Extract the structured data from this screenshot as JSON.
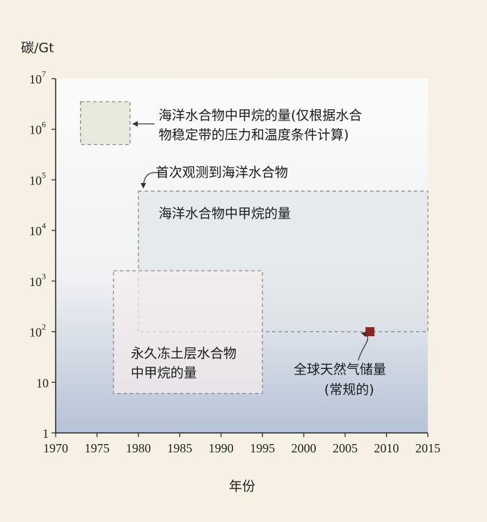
{
  "chart_data": {
    "type": "area",
    "ylabel": "碳/Gt",
    "xlabel": "年份",
    "xlim": [
      1970,
      2015
    ],
    "ylim": [
      1,
      10000000
    ],
    "y_scale": "log",
    "x_ticks": [
      1970,
      1975,
      1980,
      1985,
      1990,
      1995,
      2000,
      2005,
      2010,
      2015
    ],
    "y_ticks": [
      {
        "value": 1,
        "base": "1",
        "exp": ""
      },
      {
        "value": 10,
        "base": "10",
        "exp": ""
      },
      {
        "value": 100,
        "base": "10",
        "exp": "2"
      },
      {
        "value": 1000,
        "base": "10",
        "exp": "3"
      },
      {
        "value": 10000,
        "base": "10",
        "exp": "4"
      },
      {
        "value": 100000,
        "base": "10",
        "exp": "5"
      },
      {
        "value": 1000000,
        "base": "10",
        "exp": "6"
      },
      {
        "value": 10000000,
        "base": "10",
        "exp": "7"
      }
    ],
    "regions": [
      {
        "label_lines": [
          "海洋水合物中甲烷的量(仅根据水合",
          "物稳定带的压力和温度条件计算)"
        ],
        "x": [
          1973,
          1979
        ],
        "y": [
          500000,
          3500000
        ]
      },
      {
        "label_lines": [
          "海洋水合物中甲烷的量"
        ],
        "x": [
          1980,
          2015
        ],
        "y": [
          100,
          60000
        ]
      },
      {
        "label_lines": [
          "永久冻土层水合物",
          "中甲烷的量"
        ],
        "x": [
          1977,
          1995
        ],
        "y": [
          6,
          1600
        ]
      }
    ],
    "points": [
      {
        "label_lines": [
          "全球天然气储量",
          "(常规的)"
        ],
        "x": 2008,
        "y": 100
      }
    ],
    "annotations": [
      {
        "text": "首次观测到海洋水合物",
        "x": 1980
      }
    ],
    "colors": {
      "background": "#f6f1e4",
      "gradient_top": "#fbfbfb",
      "gradient_bottom": "#b6c2d6",
      "region_border": "#8a8a8a",
      "point": "#8b2323"
    }
  }
}
